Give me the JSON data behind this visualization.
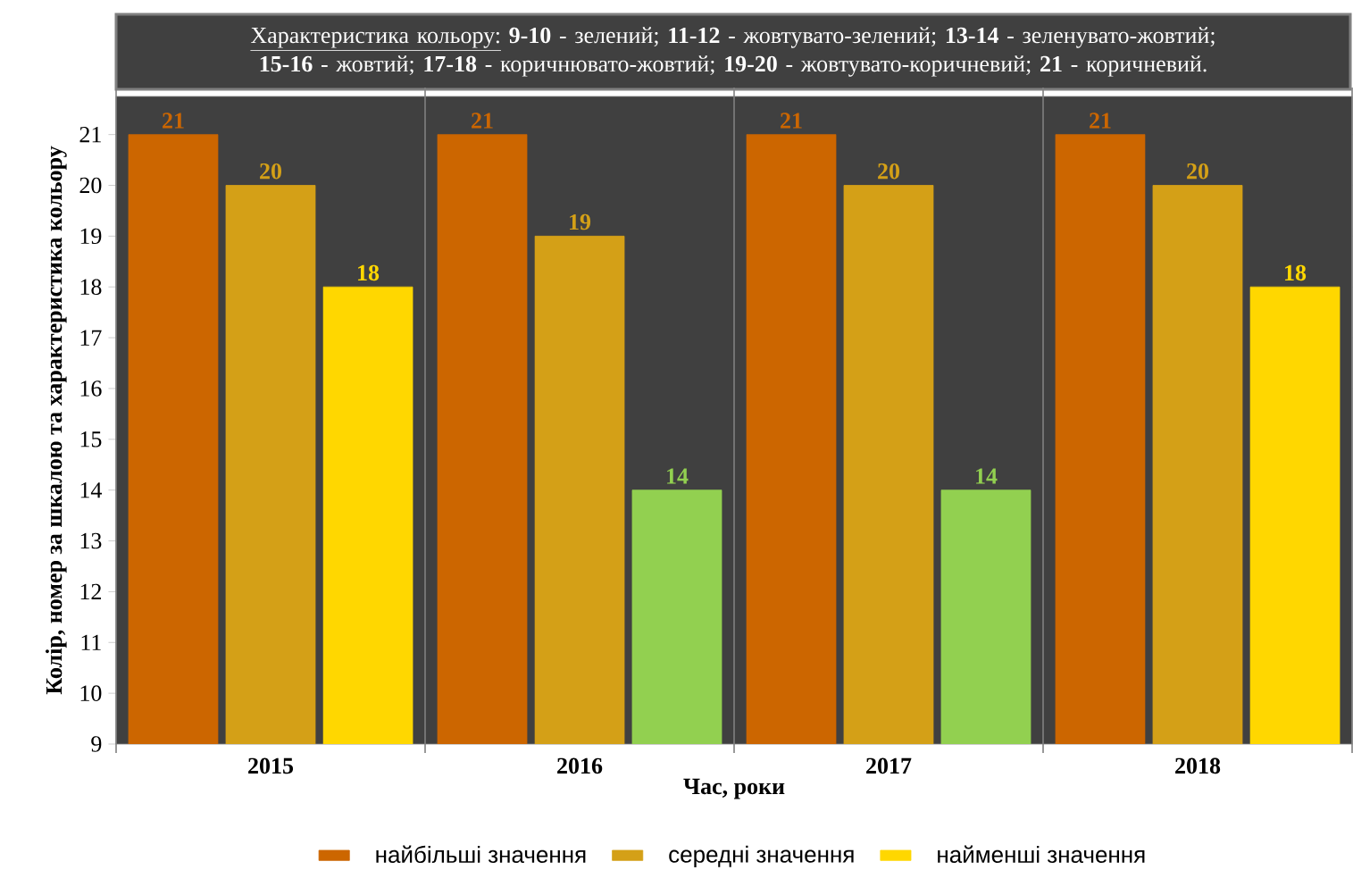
{
  "chart_data": {
    "type": "bar",
    "title": "Характеристика кольору:",
    "subtitle": "**9-10** - зелений; **11-12** - жовтувато-зелений; **13-14** - зеленувато-жовтий; **15-16** - жовтий; **17-18** - коричнювато-жовтий; **19-20** - жовтувато-коричневий; **21** - коричневий.",
    "xlabel": "Час, роки",
    "ylabel": "Колір, номер за шкалою та характеристика кольору",
    "categories": [
      "2015",
      "2016",
      "2017",
      "2018"
    ],
    "series": [
      {
        "name": "найбільші значення",
        "color": "#cc6600",
        "values": [
          21,
          21,
          21,
          21
        ]
      },
      {
        "name": "середні значення",
        "color": "#d4a017",
        "values": [
          20,
          19,
          20,
          20
        ]
      },
      {
        "name": "найменші значення",
        "colors": [
          "#ffd700",
          "#92d050",
          "#92d050",
          "#ffd700"
        ],
        "values": [
          18,
          14,
          14,
          18
        ]
      }
    ],
    "ylim": [
      9,
      21.75
    ],
    "yticks": [
      9,
      10,
      11,
      12,
      13,
      14,
      15,
      16,
      17,
      18,
      19,
      20,
      21
    ],
    "grid": "x",
    "legend": "bottom",
    "data_labels": true
  }
}
